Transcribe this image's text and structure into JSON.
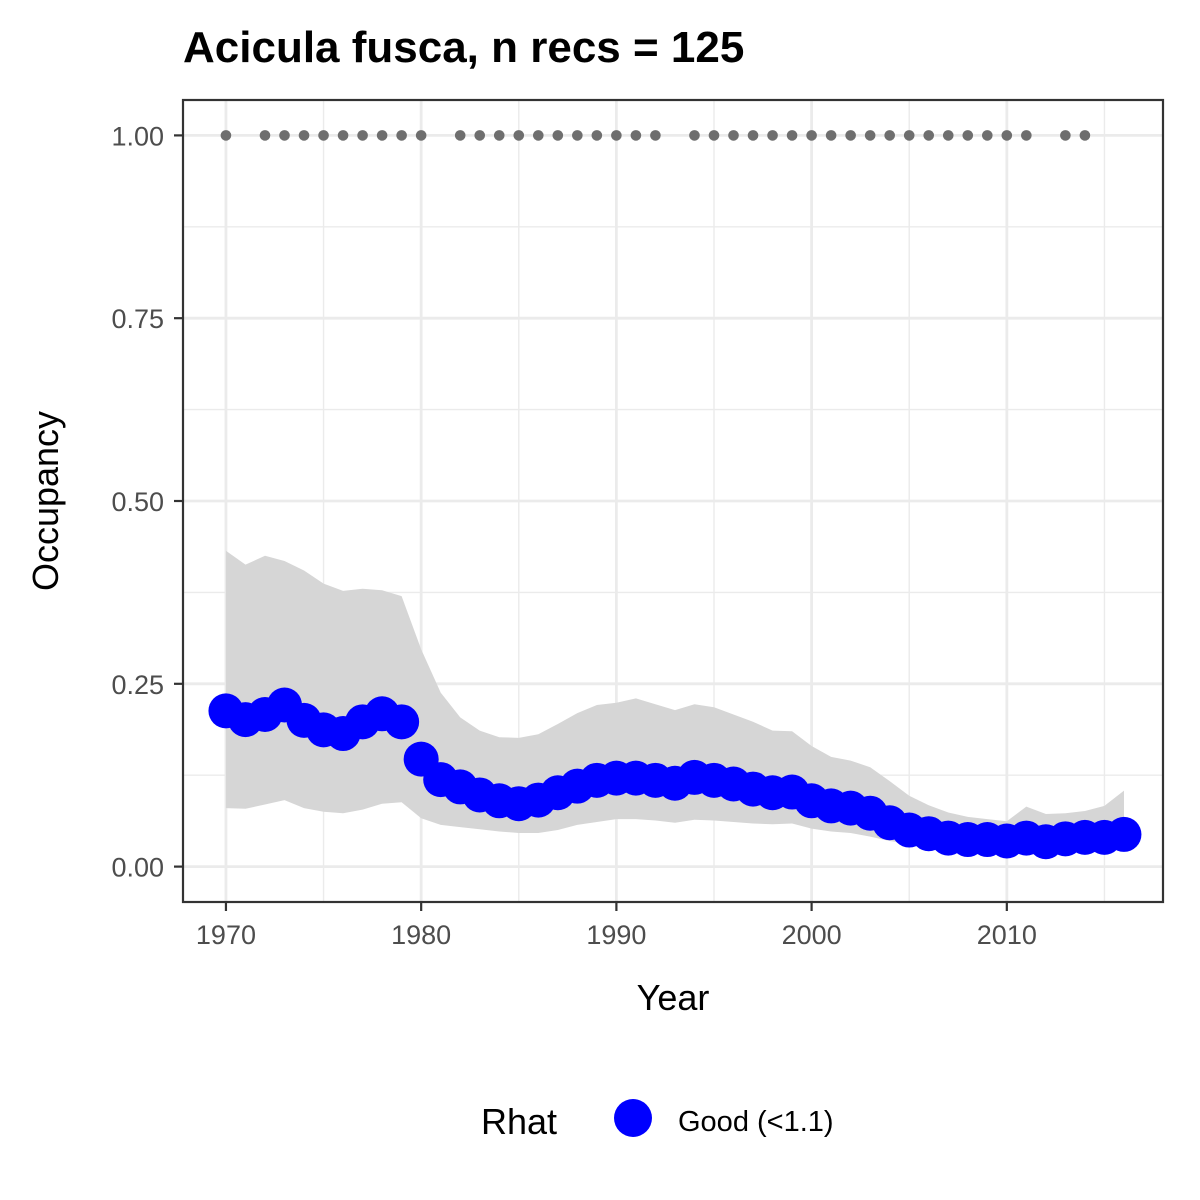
{
  "chart_data": {
    "type": "line",
    "title": "Acicula fusca, n recs = 125",
    "xlabel": "Year",
    "ylabel": "Occupancy",
    "xlim": [
      1967.8,
      1918.0
    ],
    "ylim": [
      -0.0484,
      1.0484
    ],
    "x_ticks": [
      1970,
      1980,
      1990,
      2000,
      2010
    ],
    "x_tick_labels": [
      "1970",
      "1980",
      "1990",
      "2000",
      "2010"
    ],
    "y_ticks": [
      0,
      0.25,
      0.5,
      0.75,
      1.0
    ],
    "y_tick_labels": [
      "0.00",
      "0.25",
      "0.50",
      "0.75",
      "1.00"
    ],
    "grid": true,
    "legend": {
      "title": "Rhat",
      "position": "bottom",
      "entries": [
        {
          "label": "Good (<1.1)",
          "color": "#0000ff"
        }
      ]
    },
    "colors": {
      "point": "#0000ff",
      "ribbon": "#d6d6d6",
      "record_marks": "#6e6e6e",
      "panel_border": "#333333",
      "grid": "#ebebeb"
    },
    "series": [
      {
        "name": "Good (<1.1)",
        "x": [
          1970,
          1971,
          1972,
          1973,
          1974,
          1975,
          1976,
          1977,
          1978,
          1979,
          1980,
          1981,
          1982,
          1983,
          1984,
          1985,
          1986,
          1987,
          1988,
          1989,
          1990,
          1991,
          1992,
          1993,
          1994,
          1995,
          1996,
          1997,
          1998,
          1999,
          2000,
          2001,
          2002,
          2003,
          2004,
          2005,
          2006,
          2007,
          2008,
          2009,
          2010,
          2011,
          2012,
          2013,
          2014,
          2015,
          2016
        ],
        "values": [
          0.213,
          0.201,
          0.208,
          0.221,
          0.2,
          0.187,
          0.182,
          0.198,
          0.209,
          0.198,
          0.147,
          0.119,
          0.109,
          0.098,
          0.09,
          0.086,
          0.091,
          0.101,
          0.11,
          0.118,
          0.121,
          0.121,
          0.118,
          0.114,
          0.122,
          0.118,
          0.113,
          0.106,
          0.101,
          0.102,
          0.09,
          0.083,
          0.08,
          0.073,
          0.06,
          0.05,
          0.045,
          0.039,
          0.037,
          0.037,
          0.035,
          0.039,
          0.034,
          0.038,
          0.04,
          0.04,
          0.044
        ],
        "lower": [
          0.08,
          0.079,
          0.085,
          0.091,
          0.08,
          0.075,
          0.073,
          0.078,
          0.086,
          0.088,
          0.066,
          0.057,
          0.054,
          0.051,
          0.048,
          0.046,
          0.046,
          0.05,
          0.057,
          0.061,
          0.065,
          0.065,
          0.063,
          0.06,
          0.064,
          0.063,
          0.061,
          0.059,
          0.058,
          0.059,
          0.052,
          0.048,
          0.046,
          0.041,
          0.035,
          0.031,
          0.028,
          0.027,
          0.025,
          0.025,
          0.024,
          0.025,
          0.024,
          0.025,
          0.026,
          0.025,
          0.024
        ],
        "upper": [
          0.432,
          0.413,
          0.425,
          0.418,
          0.405,
          0.387,
          0.377,
          0.38,
          0.378,
          0.37,
          0.297,
          0.238,
          0.204,
          0.186,
          0.177,
          0.176,
          0.181,
          0.195,
          0.21,
          0.221,
          0.224,
          0.23,
          0.222,
          0.214,
          0.222,
          0.218,
          0.208,
          0.198,
          0.186,
          0.185,
          0.165,
          0.15,
          0.145,
          0.136,
          0.117,
          0.097,
          0.084,
          0.074,
          0.068,
          0.065,
          0.062,
          0.082,
          0.072,
          0.073,
          0.076,
          0.083,
          0.104
        ]
      }
    ],
    "record_years": [
      1970,
      1972,
      1973,
      1974,
      1975,
      1976,
      1977,
      1978,
      1979,
      1980,
      1982,
      1983,
      1984,
      1985,
      1986,
      1987,
      1988,
      1989,
      1990,
      1991,
      1992,
      1994,
      1995,
      1996,
      1997,
      1998,
      1999,
      2000,
      2001,
      2002,
      2003,
      2004,
      2005,
      2006,
      2007,
      2008,
      2009,
      2010,
      2011,
      2013,
      2014
    ],
    "record_level": 1.0
  }
}
